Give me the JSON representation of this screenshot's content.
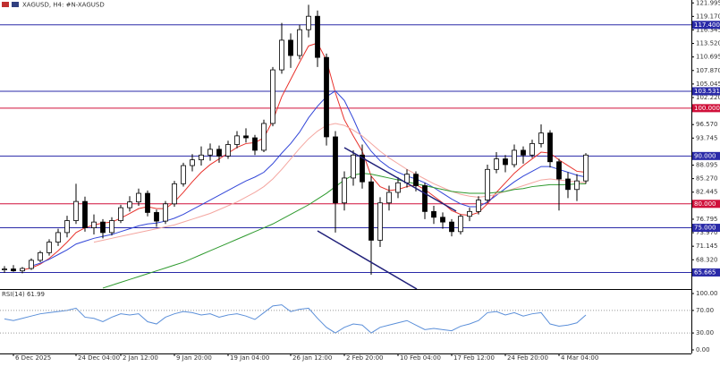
{
  "chart_data": {
    "type": "candlestick",
    "title": "XAGUSD, H4: #N-XAGUSD",
    "ylim": [
      62.2,
      122.6
    ],
    "yticks": [
      121.995,
      {
        "value": 119.17,
        "label": "119.170"
      },
      116.345,
      {
        "value": 113.52,
        "label": "113.520"
      },
      110.695,
      {
        "value": 107.87,
        "label": "107.870"
      },
      105.045,
      {
        "value": 102.22,
        "label": "102.220"
      },
      {
        "value": 96.57,
        "label": "96.570"
      },
      93.745,
      88.095,
      {
        "value": 85.27,
        "label": "85.270"
      },
      82.445,
      76.795,
      {
        "value": 73.97,
        "label": "73.970"
      },
      71.145,
      {
        "value": 68.32,
        "label": "68.320"
      }
    ],
    "categories": [
      null,
      "6 Dec 2025",
      null,
      null,
      null,
      null,
      null,
      null,
      "24 Dec 04:00",
      null,
      null,
      null,
      null,
      "2 Jan 12:00",
      null,
      null,
      null,
      null,
      null,
      "9 Jan 20:00",
      null,
      null,
      null,
      null,
      null,
      "19 Jan 04:00",
      null,
      null,
      null,
      null,
      null,
      null,
      "26 Jan 12:00",
      null,
      null,
      null,
      null,
      null,
      "2 Feb 20:00",
      null,
      null,
      null,
      null,
      null,
      "10 Feb 04:00",
      null,
      null,
      null,
      null,
      null,
      "17 Feb 12:00",
      null,
      null,
      null,
      null,
      null,
      "24 Feb 20:00",
      null,
      null,
      null,
      null,
      null,
      "4 Mar 04:00",
      null,
      null,
      null
    ],
    "candles": [
      [
        66.2,
        67.0,
        65.6,
        66.4
      ],
      [
        66.4,
        67.2,
        65.8,
        66.0
      ],
      [
        66.0,
        66.8,
        65.5,
        66.5
      ],
      [
        66.5,
        68.6,
        66.2,
        68.2
      ],
      [
        68.2,
        70.2,
        67.8,
        69.8
      ],
      [
        69.8,
        72.6,
        69.2,
        72.0
      ],
      [
        72.0,
        74.8,
        71.2,
        74.0
      ],
      [
        74.0,
        77.5,
        73.0,
        76.5
      ],
      [
        76.5,
        84.2,
        75.8,
        80.5
      ],
      [
        80.5,
        81.5,
        74.2,
        75.0
      ],
      [
        75.0,
        77.8,
        73.6,
        76.2
      ],
      [
        76.2,
        76.8,
        72.8,
        74.0
      ],
      [
        74.0,
        77.2,
        73.4,
        76.5
      ],
      [
        76.5,
        79.8,
        76.0,
        79.2
      ],
      [
        79.2,
        81.6,
        78.4,
        80.4
      ],
      [
        80.4,
        83.2,
        79.6,
        82.2
      ],
      [
        82.2,
        82.8,
        77.4,
        78.2
      ],
      [
        78.2,
        78.8,
        75.2,
        76.4
      ],
      [
        76.4,
        80.6,
        75.8,
        80.0
      ],
      [
        80.0,
        84.8,
        79.4,
        84.2
      ],
      [
        84.2,
        88.6,
        83.6,
        88.0
      ],
      [
        88.0,
        90.4,
        86.8,
        89.2
      ],
      [
        89.2,
        92.0,
        88.0,
        90.2
      ],
      [
        90.2,
        92.6,
        89.0,
        91.4
      ],
      [
        91.4,
        92.2,
        88.6,
        90.0
      ],
      [
        90.0,
        93.2,
        89.4,
        92.4
      ],
      [
        92.4,
        95.2,
        91.6,
        94.2
      ],
      [
        94.2,
        95.8,
        92.8,
        93.8
      ],
      [
        93.8,
        94.4,
        90.2,
        91.2
      ],
      [
        91.2,
        97.6,
        90.8,
        96.8
      ],
      [
        96.8,
        108.6,
        96.2,
        108.0
      ],
      [
        108.0,
        117.8,
        107.2,
        114.2
      ],
      [
        114.2,
        115.6,
        108.4,
        111.0
      ],
      [
        111.0,
        117.4,
        110.2,
        116.4
      ],
      [
        116.4,
        121.6,
        114.8,
        119.2
      ],
      [
        119.2,
        120.4,
        108.6,
        110.6
      ],
      [
        110.6,
        111.4,
        92.2,
        94.0
      ],
      [
        94.0,
        95.2,
        74.0,
        80.2
      ],
      [
        80.2,
        86.8,
        78.6,
        85.4
      ],
      [
        85.4,
        91.2,
        83.8,
        90.2
      ],
      [
        90.2,
        92.4,
        83.2,
        84.6
      ],
      [
        84.6,
        85.8,
        65.2,
        72.4
      ],
      [
        72.4,
        81.4,
        71.0,
        80.2
      ],
      [
        80.2,
        83.8,
        78.6,
        82.4
      ],
      [
        82.4,
        85.6,
        81.2,
        84.4
      ],
      [
        84.4,
        87.2,
        83.4,
        86.2
      ],
      [
        86.2,
        86.8,
        82.6,
        83.8
      ],
      [
        83.8,
        84.4,
        76.8,
        78.4
      ],
      [
        78.4,
        79.6,
        75.8,
        77.2
      ],
      [
        77.2,
        78.2,
        74.8,
        76.2
      ],
      [
        76.2,
        76.8,
        73.2,
        74.2
      ],
      [
        74.2,
        77.8,
        73.6,
        77.4
      ],
      [
        77.4,
        79.2,
        76.4,
        78.4
      ],
      [
        78.4,
        81.6,
        77.8,
        80.8
      ],
      [
        80.8,
        88.2,
        80.2,
        87.2
      ],
      [
        87.2,
        90.8,
        86.4,
        89.4
      ],
      [
        89.4,
        90.2,
        86.6,
        88.2
      ],
      [
        88.2,
        92.4,
        87.6,
        91.2
      ],
      [
        91.2,
        92.0,
        88.4,
        90.2
      ],
      [
        90.2,
        93.4,
        89.6,
        92.6
      ],
      [
        92.6,
        96.6,
        91.8,
        94.8
      ],
      [
        94.8,
        95.4,
        87.6,
        88.8
      ],
      [
        88.8,
        89.4,
        78.6,
        85.2
      ],
      [
        85.2,
        86.6,
        81.2,
        83.0
      ],
      [
        83.0,
        86.2,
        80.6,
        84.8
      ],
      [
        84.8,
        90.6,
        84.2,
        90.2
      ]
    ],
    "up_color": "#ffffff",
    "down_color": "#000000",
    "moving_averages": [
      {
        "color": "#e8322c",
        "values": [
          null,
          null,
          66.2,
          66.6,
          67.4,
          68.6,
          70.2,
          72.0,
          74.0,
          75.0,
          75.6,
          76.0,
          76.2,
          77.0,
          78.0,
          79.0,
          79.4,
          79.0,
          79.0,
          80.4,
          82.4,
          84.6,
          86.6,
          88.2,
          89.4,
          90.6,
          91.8,
          92.6,
          92.8,
          93.8,
          97.4,
          102.4,
          106.0,
          109.6,
          113.0,
          113.6,
          110.0,
          103.2,
          97.6,
          94.2,
          91.0,
          85.8,
          83.6,
          82.8,
          83.0,
          83.6,
          84.0,
          83.0,
          81.6,
          80.2,
          78.6,
          77.8,
          77.6,
          78.2,
          80.0,
          82.4,
          84.4,
          86.4,
          88.0,
          89.4,
          90.8,
          90.6,
          89.2,
          88.0,
          86.8,
          86.6
        ]
      },
      {
        "color": "#3246d8",
        "values": [
          null,
          null,
          null,
          67.0,
          67.6,
          68.4,
          69.4,
          70.4,
          71.6,
          72.2,
          72.8,
          73.2,
          73.6,
          74.2,
          74.8,
          75.4,
          75.8,
          76.0,
          76.4,
          77.0,
          77.8,
          78.8,
          79.8,
          80.8,
          81.8,
          82.8,
          83.8,
          84.8,
          85.6,
          86.6,
          88.4,
          90.6,
          92.6,
          95.0,
          98.0,
          100.4,
          102.4,
          103.6,
          101.6,
          97.8,
          93.6,
          91.0,
          89.0,
          87.6,
          86.6,
          85.8,
          85.2,
          84.4,
          83.4,
          82.2,
          81.0,
          80.0,
          79.4,
          79.4,
          80.4,
          81.8,
          83.2,
          84.6,
          85.8,
          86.8,
          87.8,
          87.8,
          87.2,
          86.6,
          86.0,
          85.6
        ]
      },
      {
        "color": "#f4a6a0",
        "values": [
          null,
          null,
          null,
          null,
          null,
          null,
          null,
          null,
          null,
          null,
          72.0,
          72.4,
          72.8,
          73.2,
          73.6,
          74.0,
          74.4,
          74.8,
          75.2,
          75.6,
          76.2,
          76.8,
          77.4,
          78.0,
          78.8,
          79.6,
          80.4,
          81.4,
          82.4,
          83.6,
          85.2,
          87.2,
          89.4,
          91.6,
          93.6,
          95.2,
          96.4,
          96.8,
          96.4,
          95.4,
          94.2,
          92.6,
          91.0,
          89.6,
          88.4,
          87.2,
          86.2,
          85.2,
          84.2,
          83.4,
          82.6,
          82.0,
          81.6,
          81.4,
          81.6,
          82.0,
          82.6,
          83.2,
          83.8,
          84.4,
          85.0,
          85.2,
          85.0,
          84.8,
          84.6,
          84.4
        ]
      },
      {
        "color": "#2e9a2e",
        "values": [
          null,
          null,
          null,
          null,
          null,
          null,
          null,
          null,
          null,
          null,
          null,
          62.4,
          63.0,
          63.6,
          64.2,
          64.8,
          65.4,
          66.0,
          66.6,
          67.2,
          67.8,
          68.6,
          69.4,
          70.2,
          71.0,
          71.8,
          72.6,
          73.4,
          74.2,
          75.0,
          75.8,
          76.8,
          77.8,
          78.8,
          79.8,
          81.0,
          82.2,
          83.6,
          85.0,
          86.0,
          86.4,
          86.2,
          85.8,
          85.4,
          85.0,
          84.6,
          84.2,
          83.8,
          83.4,
          83.0,
          82.6,
          82.4,
          82.2,
          82.2,
          82.2,
          82.4,
          82.6,
          83.0,
          83.2,
          83.6,
          83.8,
          84.0,
          84.0,
          84.0,
          84.2,
          84.2
        ]
      }
    ],
    "levels": [
      {
        "value": 117.4,
        "label": "117.400",
        "color": "#2a2aa8"
      },
      {
        "value": 103.531,
        "label": "103.531",
        "color": "#2a2aa8"
      },
      {
        "value": 100.0,
        "label": "100.000",
        "color": "#d0103a"
      },
      {
        "value": 90.0,
        "label": "90.000",
        "color": "#2a2aa8"
      },
      {
        "value": 80.0,
        "label": "80.000",
        "color": "#d0103a"
      },
      {
        "value": 75.0,
        "label": "75.000",
        "color": "#2a2aa8"
      },
      {
        "value": 65.665,
        "label": "65.665",
        "color": "#2a2aa8"
      }
    ],
    "rsi": {
      "label": "RSI(14) 61.99",
      "color": "#5b8fd9",
      "ylim": [
        0,
        100
      ],
      "yticks": [
        {
          "value": 100,
          "label": "100.00"
        },
        {
          "value": 70,
          "label": "70.00"
        },
        {
          "value": 30,
          "label": "30.00"
        },
        {
          "value": 0,
          "label": "0.00"
        }
      ],
      "guides": [
        70,
        30
      ],
      "values": [
        55,
        52,
        56,
        60,
        64,
        66,
        68,
        70,
        74,
        58,
        56,
        50,
        58,
        64,
        62,
        64,
        50,
        46,
        58,
        64,
        68,
        66,
        62,
        64,
        58,
        62,
        64,
        60,
        54,
        66,
        78,
        80,
        68,
        72,
        74,
        56,
        40,
        30,
        40,
        46,
        44,
        30,
        40,
        44,
        48,
        52,
        44,
        36,
        38,
        36,
        34,
        42,
        46,
        52,
        66,
        68,
        62,
        66,
        60,
        64,
        66,
        46,
        42,
        44,
        48,
        61.99
      ]
    }
  }
}
